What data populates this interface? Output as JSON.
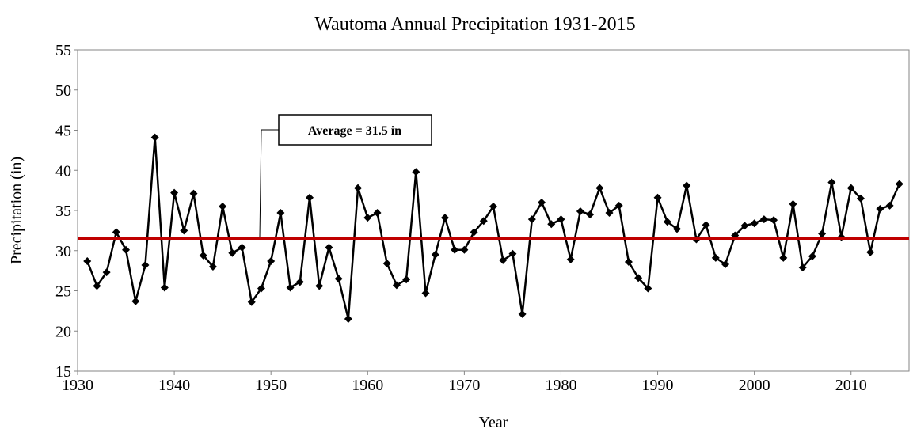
{
  "chart_data": {
    "type": "line",
    "title": "Wautoma Annual Precipitation 1931-2015",
    "x_label": "Year",
    "y_label": "Precipitation (in)",
    "x": [
      1931,
      1932,
      1933,
      1934,
      1935,
      1936,
      1937,
      1938,
      1939,
      1940,
      1941,
      1942,
      1943,
      1944,
      1945,
      1946,
      1947,
      1948,
      1949,
      1950,
      1951,
      1952,
      1953,
      1954,
      1955,
      1956,
      1957,
      1958,
      1959,
      1960,
      1961,
      1962,
      1963,
      1964,
      1965,
      1966,
      1967,
      1968,
      1969,
      1970,
      1971,
      1972,
      1973,
      1974,
      1975,
      1976,
      1977,
      1978,
      1979,
      1980,
      1981,
      1982,
      1983,
      1984,
      1985,
      1986,
      1987,
      1988,
      1989,
      1990,
      1991,
      1992,
      1993,
      1994,
      1995,
      1996,
      1997,
      1998,
      1999,
      2000,
      2001,
      2002,
      2003,
      2004,
      2005,
      2006,
      2007,
      2008,
      2009,
      2010,
      2011,
      2012,
      2013,
      2014,
      2015
    ],
    "series": [
      {
        "name": "Precipitation",
        "color": "#000000",
        "values": [
          28.7,
          25.6,
          27.3,
          32.3,
          30.1,
          23.7,
          28.2,
          44.1,
          25.4,
          37.2,
          32.5,
          37.1,
          29.4,
          28.0,
          35.5,
          29.7,
          30.4,
          23.6,
          25.3,
          28.7,
          34.7,
          25.4,
          26.1,
          36.6,
          25.6,
          30.4,
          26.5,
          21.5,
          37.8,
          34.1,
          34.7,
          28.4,
          25.7,
          26.4,
          39.8,
          24.7,
          29.5,
          34.1,
          30.1,
          30.1,
          32.3,
          33.7,
          35.5,
          28.8,
          29.6,
          22.1,
          33.9,
          36.0,
          33.3,
          33.9,
          28.9,
          34.9,
          34.5,
          37.8,
          34.7,
          35.6,
          28.6,
          26.6,
          25.3,
          36.6,
          33.6,
          32.7,
          38.1,
          31.4,
          33.2,
          29.1,
          28.3,
          31.9,
          33.1,
          33.4,
          33.9,
          33.8,
          29.1,
          35.8,
          27.9,
          29.3,
          32.1,
          38.5,
          31.7,
          37.8,
          36.5,
          29.8,
          35.2,
          35.6,
          38.3
        ]
      }
    ],
    "average": {
      "value": 31.5,
      "label": "Average = 31.5 in",
      "color": "#c00000"
    },
    "xlim": [
      1930,
      2016
    ],
    "xticks": [
      1930,
      1940,
      1950,
      1960,
      1970,
      1980,
      1990,
      2000,
      2010
    ],
    "ylim": [
      15,
      55
    ],
    "yticks": [
      15,
      20,
      25,
      30,
      35,
      40,
      45,
      50,
      55
    ]
  }
}
